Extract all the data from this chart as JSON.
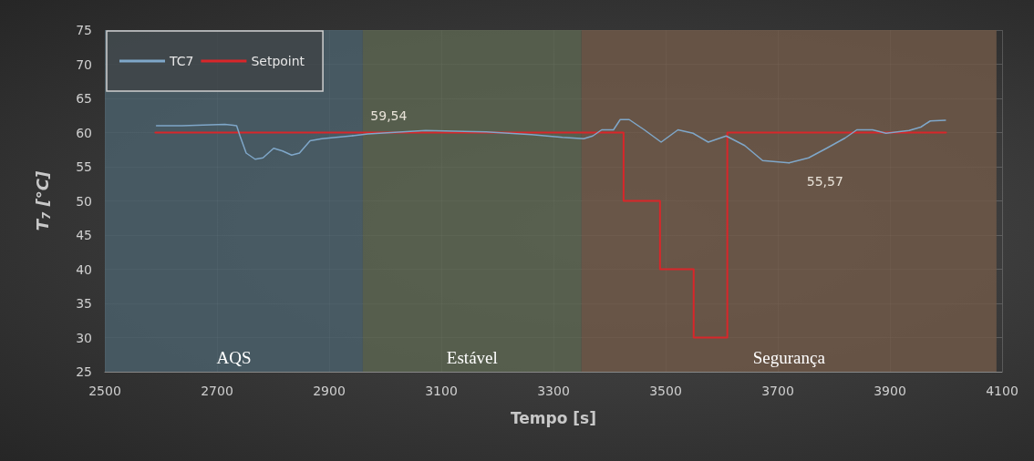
{
  "chart_data": {
    "type": "line",
    "xlabel": "Tempo [s]",
    "ylabel": "T$_{7}$ [°C]",
    "xlim": [
      2500,
      4100
    ],
    "xticks": [
      2500,
      2700,
      2900,
      3100,
      3300,
      3500,
      3700,
      3900,
      4100
    ],
    "ylim": [
      25,
      75
    ],
    "yticks": [
      25,
      30,
      35,
      40,
      45,
      50,
      55,
      60,
      65,
      70,
      75
    ],
    "grid": true,
    "legend": "top left",
    "marker": "none",
    "line_style": "solid",
    "series": [
      {
        "name": "TC7",
        "color": "#7fa7c9",
        "x": [
          2592,
          2638,
          2714,
          2735,
          2741,
          2752,
          2768,
          2782,
          2801,
          2817,
          2833,
          2847,
          2866,
          2887,
          2942,
          2969,
          3072,
          3180,
          3261,
          3316,
          3354,
          3370,
          3386,
          3407,
          3419,
          3435,
          3462,
          3492,
          3522,
          3549,
          3576,
          3608,
          3641,
          3673,
          3720,
          3755,
          3787,
          3820,
          3841,
          3869,
          3893,
          3934,
          3955,
          3972,
          3999
        ],
        "values": [
          61.0,
          61.0,
          61.2,
          61.0,
          59.5,
          57.0,
          56.1,
          56.3,
          57.7,
          57.3,
          56.7,
          57.0,
          58.8,
          59.1,
          59.54,
          59.8,
          60.3,
          60.1,
          59.7,
          59.3,
          59.1,
          59.5,
          60.4,
          60.4,
          61.9,
          61.9,
          60.4,
          58.6,
          60.4,
          59.9,
          58.6,
          59.5,
          58.1,
          55.9,
          55.57,
          56.3,
          57.7,
          59.2,
          60.4,
          60.4,
          59.9,
          60.3,
          60.8,
          61.7,
          61.8
        ]
      },
      {
        "name": "Setpoint",
        "type": "step",
        "color": "#d9262a",
        "x": [
          2590,
          3425,
          3490,
          3550,
          3610,
          4000
        ],
        "values": [
          60,
          50,
          40,
          30,
          60,
          60
        ]
      }
    ],
    "bands": [
      {
        "axis": "x",
        "from": 2500,
        "to": 2960,
        "label": "AQS",
        "color": "#4a5f6a"
      },
      {
        "axis": "x",
        "from": 2960,
        "to": 3350,
        "label": "Estável",
        "color": "#5b6450"
      },
      {
        "axis": "x",
        "from": 3350,
        "to": 4090,
        "label": "Segurança",
        "color": "#6e5848"
      }
    ],
    "annotations": [
      {
        "text": "59,54",
        "x": 2942,
        "y": 59.54
      },
      {
        "text": "55,57",
        "x": 3720,
        "y": 55.57
      }
    ]
  }
}
